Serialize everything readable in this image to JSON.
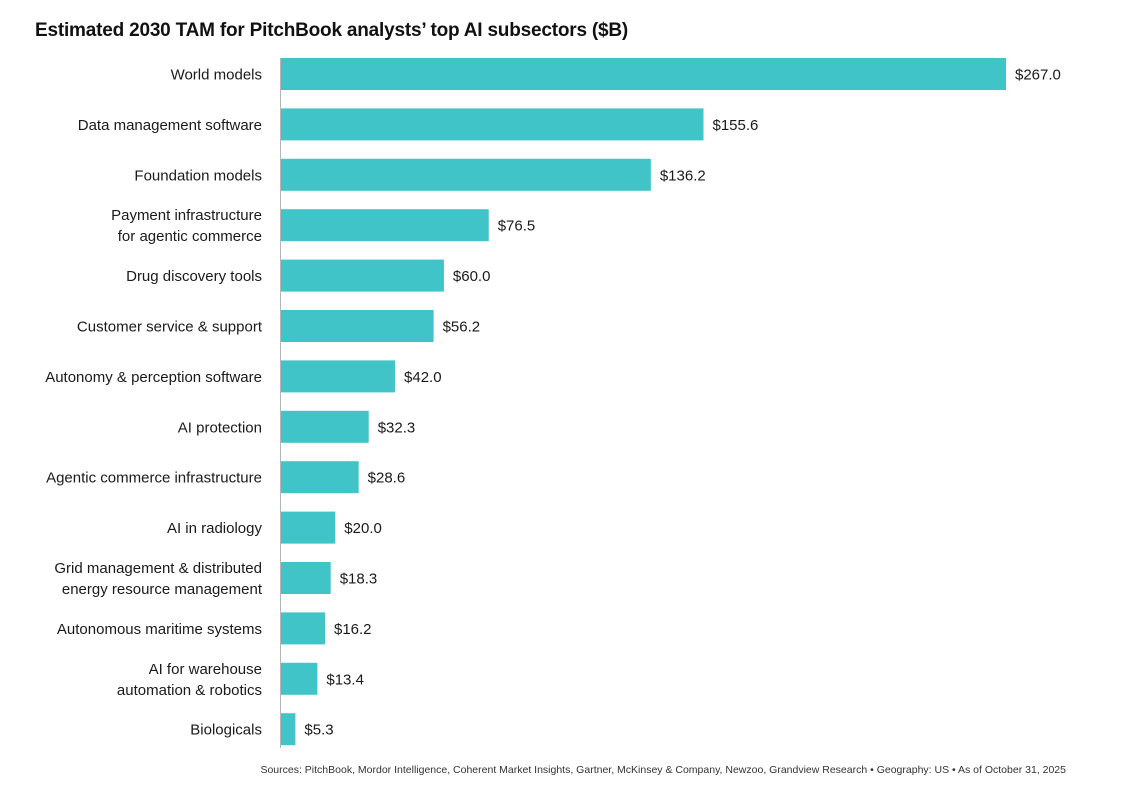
{
  "chart_data": {
    "type": "bar",
    "orientation": "horizontal",
    "title": "Estimated 2030 TAM for PitchBook analysts’ top AI subsectors ($B)",
    "xlabel": "",
    "ylabel": "",
    "value_prefix": "$",
    "value_decimals": 1,
    "bar_color": "#40c4c8",
    "grid": false,
    "xlim": [
      0,
      267
    ],
    "categories": [
      [
        "World models"
      ],
      [
        "Data management software"
      ],
      [
        "Foundation models"
      ],
      [
        "Payment infrastructure",
        "for agentic commerce"
      ],
      [
        "Drug discovery tools"
      ],
      [
        "Customer service & support"
      ],
      [
        "Autonomy & perception software"
      ],
      [
        "AI protection"
      ],
      [
        "Agentic commerce infrastructure"
      ],
      [
        "AI in radiology"
      ],
      [
        "Grid management & distributed",
        "energy resource management"
      ],
      [
        "Autonomous maritime systems"
      ],
      [
        "AI for warehouse",
        "automation & robotics"
      ],
      [
        "Biologicals"
      ]
    ],
    "values": [
      267.0,
      155.6,
      136.2,
      76.5,
      60.0,
      56.2,
      42.0,
      32.3,
      28.6,
      20.0,
      18.3,
      16.2,
      13.4,
      5.3
    ],
    "source": "Sources: PitchBook, Mordor Intelligence, Coherent Market Insights, Gartner, McKinsey & Company, Newzoo, Grandview Research  •  Geography: US  •  As of October 31, 2025"
  }
}
